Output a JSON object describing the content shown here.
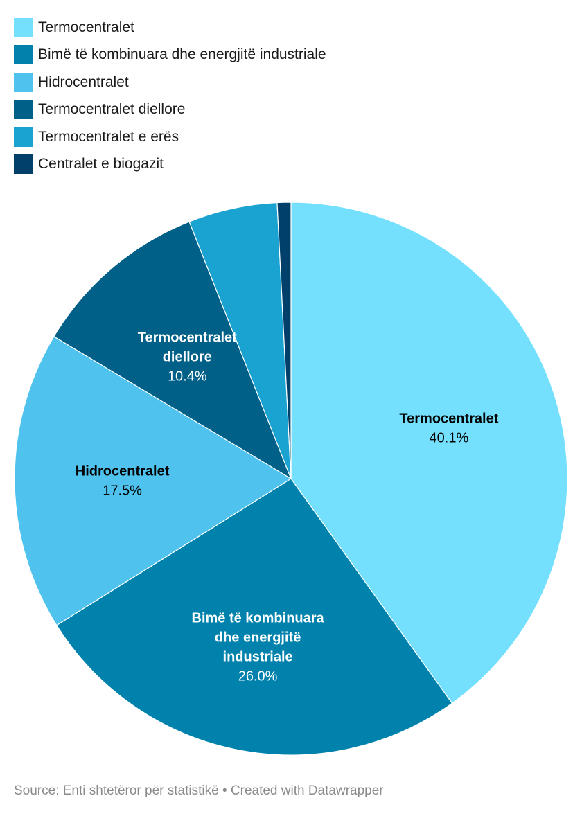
{
  "chart_data": {
    "type": "pie",
    "title": "",
    "legend_position": "top-left",
    "slices": [
      {
        "label": "Termocentralet",
        "value": 40.1,
        "display": "40.1%",
        "color": "#74e0fd",
        "text_color": "#000000",
        "name_lines": [
          "Termocentralet"
        ]
      },
      {
        "label": "Bimë të kombinuara dhe energjitë industriale",
        "value": 26.0,
        "display": "26.0%",
        "color": "#0082ad",
        "text_color": "#ffffff",
        "name_lines": [
          "Bimë të kombinuara",
          "dhe energjitë",
          "industriale"
        ]
      },
      {
        "label": "Hidrocentralet",
        "value": 17.5,
        "display": "17.5%",
        "color": "#4fc3ee",
        "text_color": "#000000",
        "name_lines": [
          "Hidrocentralet"
        ]
      },
      {
        "label": "Termocentralet diellore",
        "value": 10.4,
        "display": "10.4%",
        "color": "#006088",
        "text_color": "#ffffff",
        "name_lines": [
          "Termocentralet",
          "diellore"
        ]
      },
      {
        "label": "Termocentralet e erës",
        "value": 5.2,
        "display": "",
        "color": "#1aa3d0",
        "text_color": "#ffffff",
        "name_lines": []
      },
      {
        "label": "Centralet e biogazit",
        "value": 0.8,
        "display": "",
        "color": "#00406a",
        "text_color": "#ffffff",
        "name_lines": []
      }
    ]
  },
  "footer": {
    "source": "Source: Enti shtetëror për statistikë • Created with Datawrapper"
  }
}
